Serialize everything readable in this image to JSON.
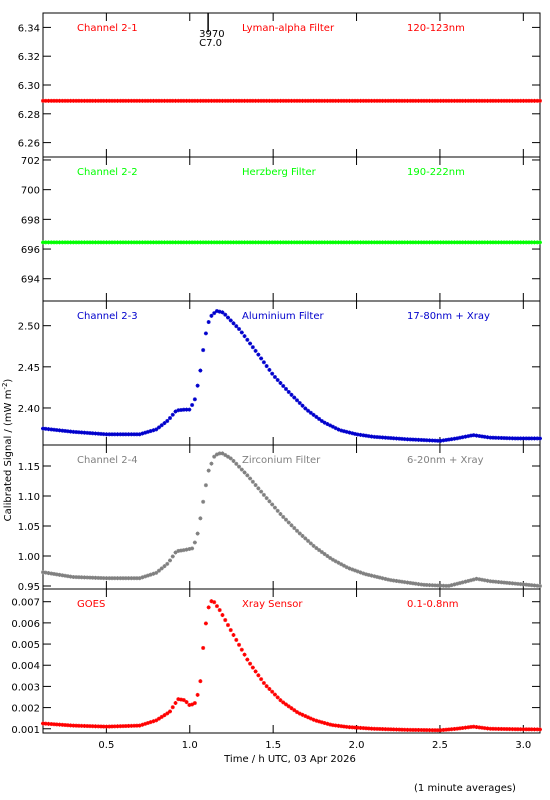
{
  "chart_data": {
    "type": "scatter",
    "x_axis": {
      "label": "Time / h UTC, 03 Apr 2026",
      "range": [
        0.12,
        3.1
      ],
      "ticks": [
        0.5,
        1.0,
        1.5,
        2.0,
        2.5,
        3.0
      ],
      "tick_labels": [
        "0.5",
        "1.0",
        "1.5",
        "2.0",
        "2.5",
        "3.0"
      ]
    },
    "y_axis_label": "Calibrated Signal / (mW m",
    "y_axis_label_sup": "-2",
    "y_axis_label_tail": ")",
    "footnote": "(1 minute averages)",
    "marker_annotation": {
      "x": 1.11,
      "lines": [
        "3970",
        "C7.0"
      ]
    },
    "panels": [
      {
        "channel": "Channel 2-1",
        "filter": "Lyman-alpha Filter",
        "band": "120-123nm",
        "color": "#ff0000",
        "yrange": [
          6.25,
          6.35
        ],
        "yticks": [
          6.26,
          6.28,
          6.3,
          6.32,
          6.34
        ],
        "ytick_labels": [
          "6.26",
          "6.28",
          "6.30",
          "6.32",
          "6.34"
        ],
        "points": [
          [
            0.12,
            6.289
          ],
          [
            3.1,
            6.289
          ]
        ]
      },
      {
        "channel": "Channel 2-2",
        "filter": "Herzberg Filter",
        "band": "190-222nm",
        "color": "#00ff00",
        "yrange": [
          692.5,
          702.2
        ],
        "yticks": [
          694,
          696,
          698,
          700,
          702
        ],
        "ytick_labels": [
          "694",
          "696",
          "698",
          "700",
          "702"
        ],
        "points": [
          [
            0.12,
            696.45
          ],
          [
            3.1,
            696.45
          ]
        ]
      },
      {
        "channel": "Channel 2-3",
        "filter": "Aluminium Filter",
        "band": "17-80nm + Xray",
        "color": "#0000cc",
        "yrange": [
          2.355,
          2.53
        ],
        "yticks": [
          2.4,
          2.45,
          2.5
        ],
        "ytick_labels": [
          "2.40",
          "2.45",
          "2.50"
        ],
        "points": [
          [
            0.12,
            2.375
          ],
          [
            0.3,
            2.371
          ],
          [
            0.5,
            2.368
          ],
          [
            0.7,
            2.368
          ],
          [
            0.8,
            2.374
          ],
          [
            0.87,
            2.385
          ],
          [
            0.92,
            2.397
          ],
          [
            0.97,
            2.398
          ],
          [
            1.0,
            2.398
          ],
          [
            1.03,
            2.41
          ],
          [
            1.06,
            2.44
          ],
          [
            1.09,
            2.485
          ],
          [
            1.12,
            2.51
          ],
          [
            1.16,
            2.518
          ],
          [
            1.2,
            2.516
          ],
          [
            1.3,
            2.495
          ],
          [
            1.4,
            2.468
          ],
          [
            1.5,
            2.44
          ],
          [
            1.6,
            2.418
          ],
          [
            1.7,
            2.398
          ],
          [
            1.8,
            2.383
          ],
          [
            1.9,
            2.373
          ],
          [
            2.0,
            2.368
          ],
          [
            2.1,
            2.365
          ],
          [
            2.3,
            2.362
          ],
          [
            2.5,
            2.36
          ],
          [
            2.6,
            2.363
          ],
          [
            2.7,
            2.367
          ],
          [
            2.8,
            2.364
          ],
          [
            2.95,
            2.363
          ],
          [
            3.1,
            2.363
          ]
        ]
      },
      {
        "channel": "Channel 2-4",
        "filter": "Zirconium Filter",
        "band": "6-20nm + Xray",
        "color": "#808080",
        "yrange": [
          0.945,
          1.185
        ],
        "yticks": [
          0.95,
          1.0,
          1.05,
          1.1,
          1.15
        ],
        "ytick_labels": [
          "0.95",
          "1.00",
          "1.05",
          "1.10",
          "1.15"
        ],
        "points": [
          [
            0.12,
            0.973
          ],
          [
            0.3,
            0.965
          ],
          [
            0.5,
            0.963
          ],
          [
            0.7,
            0.963
          ],
          [
            0.8,
            0.972
          ],
          [
            0.87,
            0.988
          ],
          [
            0.92,
            1.008
          ],
          [
            0.97,
            1.01
          ],
          [
            1.02,
            1.013
          ],
          [
            1.05,
            1.04
          ],
          [
            1.08,
            1.09
          ],
          [
            1.11,
            1.14
          ],
          [
            1.15,
            1.168
          ],
          [
            1.19,
            1.172
          ],
          [
            1.25,
            1.162
          ],
          [
            1.35,
            1.133
          ],
          [
            1.45,
            1.1
          ],
          [
            1.55,
            1.068
          ],
          [
            1.65,
            1.04
          ],
          [
            1.75,
            1.015
          ],
          [
            1.85,
            0.995
          ],
          [
            1.95,
            0.98
          ],
          [
            2.05,
            0.97
          ],
          [
            2.2,
            0.96
          ],
          [
            2.4,
            0.952
          ],
          [
            2.55,
            0.95
          ],
          [
            2.65,
            0.957
          ],
          [
            2.72,
            0.962
          ],
          [
            2.8,
            0.958
          ],
          [
            2.95,
            0.954
          ],
          [
            3.1,
            0.95
          ]
        ]
      },
      {
        "channel": "GOES",
        "filter": "Xray Sensor",
        "band": "0.1-0.8nm",
        "color": "#ff0000",
        "yrange": [
          0.0008,
          0.0076
        ],
        "yticks": [
          0.001,
          0.002,
          0.003,
          0.004,
          0.005,
          0.006,
          0.007
        ],
        "ytick_labels": [
          "0.001",
          "0.002",
          "0.003",
          "0.004",
          "0.005",
          "0.006",
          "0.007"
        ],
        "points": [
          [
            0.12,
            0.00125
          ],
          [
            0.3,
            0.00115
          ],
          [
            0.5,
            0.0011
          ],
          [
            0.7,
            0.00115
          ],
          [
            0.8,
            0.0014
          ],
          [
            0.88,
            0.0018
          ],
          [
            0.93,
            0.0024
          ],
          [
            0.97,
            0.00235
          ],
          [
            1.0,
            0.0021
          ],
          [
            1.03,
            0.0022
          ],
          [
            1.06,
            0.0029
          ],
          [
            1.08,
            0.0048
          ],
          [
            1.1,
            0.0062
          ],
          [
            1.12,
            0.007
          ],
          [
            1.14,
            0.00705
          ],
          [
            1.18,
            0.0066
          ],
          [
            1.25,
            0.0056
          ],
          [
            1.35,
            0.0042
          ],
          [
            1.45,
            0.0031
          ],
          [
            1.55,
            0.0023
          ],
          [
            1.65,
            0.00175
          ],
          [
            1.75,
            0.0014
          ],
          [
            1.85,
            0.00118
          ],
          [
            1.95,
            0.00108
          ],
          [
            2.1,
            0.001
          ],
          [
            2.3,
            0.00095
          ],
          [
            2.5,
            0.00093
          ],
          [
            2.6,
            0.001
          ],
          [
            2.7,
            0.0011
          ],
          [
            2.8,
            0.001
          ],
          [
            2.95,
            0.00098
          ],
          [
            3.1,
            0.00097
          ]
        ]
      }
    ]
  }
}
